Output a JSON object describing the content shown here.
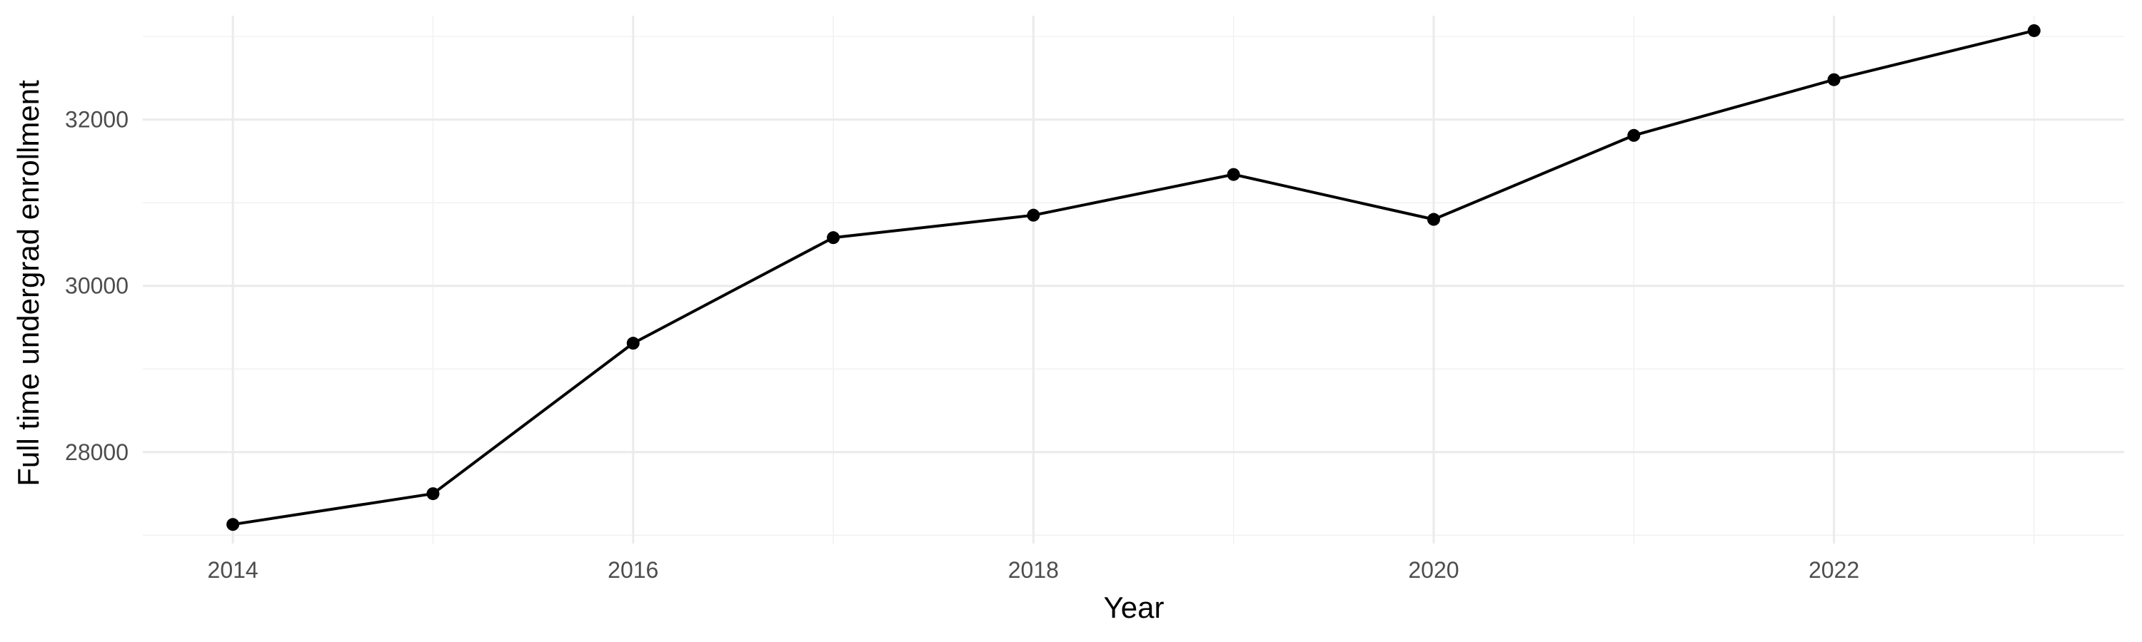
{
  "chart_data": {
    "type": "line",
    "title": "",
    "xlabel": "Year",
    "ylabel": "Full time undergrad enrollment",
    "x": [
      2014,
      2015,
      2016,
      2017,
      2018,
      2019,
      2020,
      2021,
      2022,
      2023
    ],
    "series": [
      {
        "values": [
          27130,
          27500,
          29310,
          30580,
          30850,
          31340,
          30800,
          31810,
          32480,
          33070
        ]
      }
    ],
    "xlim": [
      2013.55,
      2023.45
    ],
    "ylim": [
      26900,
      33250
    ],
    "x_major_ticks": [
      2014,
      2016,
      2018,
      2020,
      2022
    ],
    "x_minor_ticks": [
      2015,
      2017,
      2019,
      2021,
      2023
    ],
    "y_major_ticks": [
      28000,
      30000,
      32000
    ],
    "y_minor_ticks": [
      27000,
      29000,
      31000,
      33000
    ],
    "x_tick_labels": [
      "2014",
      "2016",
      "2018",
      "2020",
      "2022"
    ],
    "y_tick_labels": [
      "28000",
      "30000",
      "32000"
    ],
    "grid": true,
    "legend": "none",
    "colors": {
      "line": "#000000",
      "point": "#000000",
      "grid_major": "#ebebeb",
      "grid_minor": "#f2f2f2",
      "tick_text": "#4d4d4d"
    }
  }
}
